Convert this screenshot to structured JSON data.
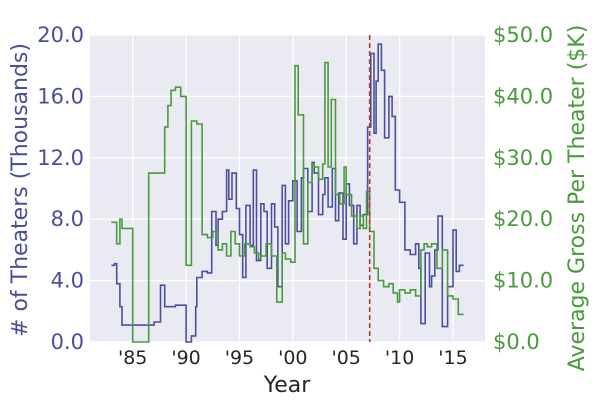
{
  "chart_data": {
    "type": "line",
    "xlabel": "Year",
    "ylabel_left": "# of Theaters (Thousands)",
    "ylabel_right": "Average Gross Per Theater ($K)",
    "xlim": [
      1981,
      2018
    ],
    "ylim_left": [
      0,
      20
    ],
    "ylim_right": [
      0,
      50
    ],
    "x_ticks": [
      {
        "value": 1985,
        "label": "'85"
      },
      {
        "value": 1990,
        "label": "'90"
      },
      {
        "value": 1995,
        "label": "'95"
      },
      {
        "value": 2000,
        "label": "'00"
      },
      {
        "value": 2005,
        "label": "'05"
      },
      {
        "value": 2010,
        "label": "'10"
      },
      {
        "value": 2015,
        "label": "'15"
      }
    ],
    "y_ticks_left": [
      "0.0",
      "4.0",
      "8.0",
      "12.0",
      "16.0",
      "20.0"
    ],
    "y_ticks_right": [
      "$0.0",
      "$10.0",
      "$20.0",
      "$30.0",
      "$40.0",
      "$50.0"
    ],
    "grid": true,
    "background": "#eaeaf2",
    "marker_line": {
      "x": 2007.2,
      "color": "#b03a2e",
      "style": "dashed"
    },
    "series": [
      {
        "axis": "left",
        "color": "#4c4fa0",
        "x": [
          1983.0,
          1983.3,
          1983.5,
          1983.8,
          1984.0,
          1985.0,
          1986.0,
          1987.0,
          1987.6,
          1988.0,
          1988.6,
          1989.0,
          1990.0,
          1990.5,
          1990.9,
          1991.0,
          1991.5,
          1992.0,
          1992.4,
          1992.8,
          1993.0,
          1993.4,
          1993.8,
          1994.0,
          1994.3,
          1994.7,
          1995.0,
          1995.3,
          1995.6,
          1996.0,
          1996.3,
          1996.6,
          1997.0,
          1997.3,
          1997.6,
          1998.0,
          1998.3,
          1998.6,
          1999.0,
          1999.3,
          1999.6,
          2000.0,
          2000.4,
          2000.8,
          2001.0,
          2001.4,
          2001.8,
          2002.0,
          2002.4,
          2002.8,
          2003.0,
          2003.3,
          2003.7,
          2004.0,
          2004.3,
          2004.7,
          2005.0,
          2005.3,
          2005.7,
          2006.0,
          2006.3,
          2006.6,
          2007.0,
          2007.3,
          2007.6,
          2007.8,
          2008.0,
          2008.3,
          2008.6,
          2009.0,
          2009.3,
          2009.6,
          2010.0,
          2010.5,
          2011.0,
          2011.5,
          2011.8,
          2012.0,
          2012.4,
          2012.8,
          2013.0,
          2013.3,
          2013.6,
          2014.0,
          2014.5,
          2015.0,
          2015.3,
          2015.6,
          2016.0
        ],
        "y": [
          5.0,
          5.1,
          3.8,
          2.3,
          1.1,
          1.1,
          1.1,
          1.3,
          3.7,
          2.3,
          2.3,
          2.4,
          0.0,
          0.4,
          2.3,
          4.2,
          4.6,
          4.5,
          8.5,
          6.3,
          8.0,
          8.5,
          11.2,
          9.3,
          11.0,
          8.7,
          7.0,
          4.2,
          8.9,
          6.3,
          11.2,
          5.3,
          9.0,
          8.5,
          4.8,
          9.0,
          7.5,
          3.6,
          10.2,
          6.4,
          9.2,
          10.5,
          7.2,
          10.7,
          11.3,
          8.5,
          11.7,
          11.0,
          8.3,
          9.6,
          10.7,
          8.8,
          11.3,
          7.9,
          9.7,
          6.7,
          10.3,
          8.9,
          6.4,
          8.9,
          7.6,
          8.3,
          14.0,
          18.8,
          13.6,
          17.0,
          19.4,
          17.7,
          13.3,
          16.0,
          14.7,
          9.9,
          9.1,
          6.0,
          5.7,
          6.4,
          4.8,
          1.2,
          5.8,
          3.6,
          4.3,
          6.0,
          8.2,
          1.0,
          3.6,
          7.3,
          4.6,
          5.0,
          5.0
        ]
      },
      {
        "axis": "right",
        "color": "#4a9a3e",
        "x": [
          1983.0,
          1983.5,
          1983.8,
          1984.0,
          1985.0,
          1986.0,
          1986.5,
          1987.0,
          1988.0,
          1988.3,
          1988.6,
          1989.0,
          1989.5,
          1990.0,
          1990.5,
          1991.0,
          1991.5,
          1992.0,
          1992.5,
          1993.0,
          1993.4,
          1993.8,
          1994.2,
          1994.6,
          1995.0,
          1995.5,
          1996.0,
          1996.4,
          1996.8,
          1997.0,
          1997.5,
          1998.0,
          1998.5,
          1999.0,
          1999.3,
          1999.8,
          2000.2,
          2000.5,
          2001.0,
          2001.4,
          2001.8,
          2002.0,
          2002.4,
          2002.8,
          2003.0,
          2003.3,
          2003.6,
          2004.0,
          2004.4,
          2004.8,
          2005.0,
          2005.5,
          2006.0,
          2006.3,
          2006.6,
          2006.9,
          2007.2,
          2007.6,
          2008.0,
          2008.5,
          2009.0,
          2009.4,
          2009.8,
          2010.0,
          2010.5,
          2011.0,
          2011.5,
          2012.0,
          2012.3,
          2012.6,
          2013.0,
          2013.5,
          2014.0,
          2014.5,
          2015.0,
          2015.5,
          2016.0
        ],
        "y": [
          19.5,
          16.0,
          20.0,
          18.5,
          0.0,
          0.0,
          27.5,
          27.5,
          35.0,
          38.5,
          41.0,
          41.5,
          40.0,
          12.5,
          36.0,
          35.5,
          17.5,
          17.0,
          18.0,
          15.0,
          16.0,
          14.0,
          18.0,
          16.0,
          14.0,
          16.0,
          15.5,
          14.5,
          13.5,
          14.0,
          16.0,
          14.0,
          6.5,
          14.5,
          13.5,
          13.0,
          45.0,
          37.0,
          16.0,
          26.0,
          29.0,
          28.5,
          26.5,
          29.0,
          45.5,
          28.5,
          39.5,
          24.0,
          22.5,
          28.5,
          24.0,
          20.5,
          18.5,
          20.5,
          18.5,
          24.5,
          18.0,
          12.0,
          10.0,
          9.0,
          9.5,
          8.0,
          6.5,
          8.5,
          8.0,
          8.5,
          7.5,
          15.0,
          16.0,
          15.5,
          16.0,
          12.0,
          15.0,
          7.5,
          7.0,
          4.5,
          4.5
        ]
      }
    ]
  }
}
